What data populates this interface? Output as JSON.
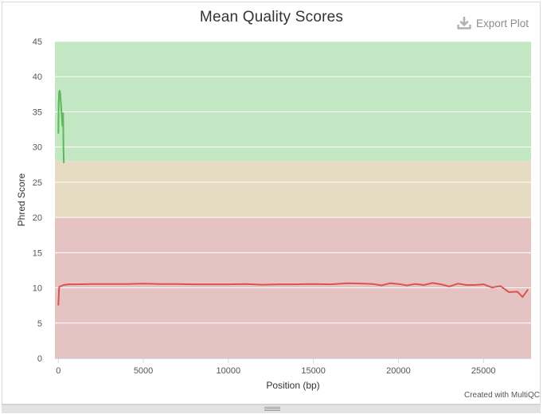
{
  "title": "Mean Quality Scores",
  "export_label": "Export Plot",
  "credit": "Created with MultiQC",
  "colors": {
    "zone_good": "#c3e6c3",
    "zone_warn": "#e6dcc3",
    "zone_fail": "#e6c3c3",
    "series_pass": "#5cb85c",
    "series_fail": "#d9534f"
  },
  "chart_data": {
    "type": "line",
    "xlabel": "Position (bp)",
    "ylabel": "Phred Score",
    "xlim": [
      -200,
      27800
    ],
    "ylim": [
      0,
      45
    ],
    "xticks": [
      0,
      5000,
      10000,
      15000,
      20000,
      25000
    ],
    "yticks": [
      0,
      5,
      10,
      15,
      20,
      25,
      30,
      35,
      40,
      45
    ],
    "grid": true,
    "bands": [
      {
        "from": 28,
        "to": 45,
        "zone": "good"
      },
      {
        "from": 20,
        "to": 28,
        "zone": "warn"
      },
      {
        "from": 0,
        "to": 20,
        "zone": "fail"
      }
    ],
    "series": [
      {
        "status": "pass",
        "x": [
          0,
          20,
          50,
          80,
          110,
          140,
          170,
          200,
          240,
          280,
          300,
          320
        ],
        "y": [
          32.0,
          36.0,
          37.8,
          38.0,
          37.6,
          36.5,
          35.5,
          34.5,
          33.0,
          34.8,
          30.0,
          27.8
        ]
      },
      {
        "status": "fail",
        "x": [
          0,
          50,
          100,
          300,
          600,
          1000,
          2000,
          3000,
          4000,
          5000,
          6000,
          7000,
          8000,
          9000,
          10000,
          11000,
          12000,
          13000,
          14000,
          15000,
          16000,
          17000,
          18000,
          18500,
          19000,
          19500,
          20000,
          20500,
          21000,
          21500,
          22000,
          22500,
          23000,
          23500,
          24000,
          24500,
          25000,
          25500,
          26000,
          26500,
          27000,
          27300,
          27600
        ],
        "y": [
          7.6,
          10.1,
          10.2,
          10.4,
          10.5,
          10.5,
          10.55,
          10.55,
          10.55,
          10.6,
          10.55,
          10.55,
          10.5,
          10.5,
          10.5,
          10.55,
          10.45,
          10.5,
          10.5,
          10.55,
          10.5,
          10.65,
          10.6,
          10.55,
          10.35,
          10.65,
          10.55,
          10.35,
          10.55,
          10.4,
          10.7,
          10.5,
          10.2,
          10.6,
          10.4,
          10.4,
          10.5,
          10.05,
          10.25,
          9.4,
          9.45,
          8.7,
          9.7
        ]
      }
    ]
  }
}
